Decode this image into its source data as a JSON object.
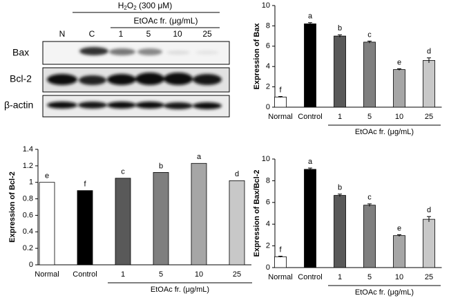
{
  "blot": {
    "header": [
      "H",
      "2",
      "O",
      "2",
      " (300 μM)"
    ],
    "subheader": "EtOAc fr. (μg/mL)",
    "lanes": [
      "N",
      "C",
      "1",
      "5",
      "10",
      "25"
    ],
    "rows": [
      "Bax",
      "Bcl-2",
      "β-actin"
    ]
  },
  "chart_data": [
    {
      "type": "bar",
      "ylabel": "Expression of Bax",
      "categories": [
        "Normal",
        "Control",
        "1",
        "5",
        "10",
        "25"
      ],
      "values": [
        1.0,
        8.2,
        7.0,
        6.4,
        3.7,
        4.6
      ],
      "errors": [
        0.05,
        0.12,
        0.12,
        0.1,
        0.08,
        0.25
      ],
      "letters": [
        "f",
        "a",
        "b",
        "c",
        "e",
        "d"
      ],
      "colors": [
        "#ffffff",
        "#000000",
        "#595959",
        "#7f7f7f",
        "#a6a6a6",
        "#c8c8c8"
      ],
      "group_label": "EtOAc fr. (μg/mL)",
      "ylim": [
        0,
        10
      ],
      "yticks": [
        0,
        2,
        4,
        6,
        8,
        10
      ]
    },
    {
      "type": "bar",
      "ylabel": "Expression of Bcl-2",
      "categories": [
        "Normal",
        "Control",
        "1",
        "5",
        "10",
        "25"
      ],
      "values": [
        1.0,
        0.9,
        1.05,
        1.12,
        1.23,
        1.02
      ],
      "letters": [
        "e",
        "f",
        "c",
        "b",
        "a",
        "d"
      ],
      "colors": [
        "#ffffff",
        "#000000",
        "#595959",
        "#7f7f7f",
        "#a6a6a6",
        "#c8c8c8"
      ],
      "group_label": "EtOAc fr. (μg/mL)",
      "ylim": [
        0,
        1.4
      ],
      "yticks": [
        0,
        0.2,
        0.4,
        0.6,
        0.8,
        1,
        1.2,
        1.4
      ]
    },
    {
      "type": "bar",
      "ylabel": "Expression of Bax/Bcl-2",
      "categories": [
        "Normal",
        "Control",
        "1",
        "5",
        "10",
        "25"
      ],
      "values": [
        1.0,
        9.05,
        6.65,
        5.75,
        2.95,
        4.45
      ],
      "errors": [
        0.05,
        0.12,
        0.12,
        0.12,
        0.08,
        0.25
      ],
      "letters": [
        "f",
        "a",
        "b",
        "c",
        "e",
        "d"
      ],
      "colors": [
        "#ffffff",
        "#000000",
        "#595959",
        "#7f7f7f",
        "#a6a6a6",
        "#c8c8c8"
      ],
      "group_label": "EtOAc fr. (μg/mL)",
      "ylim": [
        0,
        10
      ],
      "yticks": [
        0,
        2,
        4,
        6,
        8,
        10
      ]
    }
  ]
}
